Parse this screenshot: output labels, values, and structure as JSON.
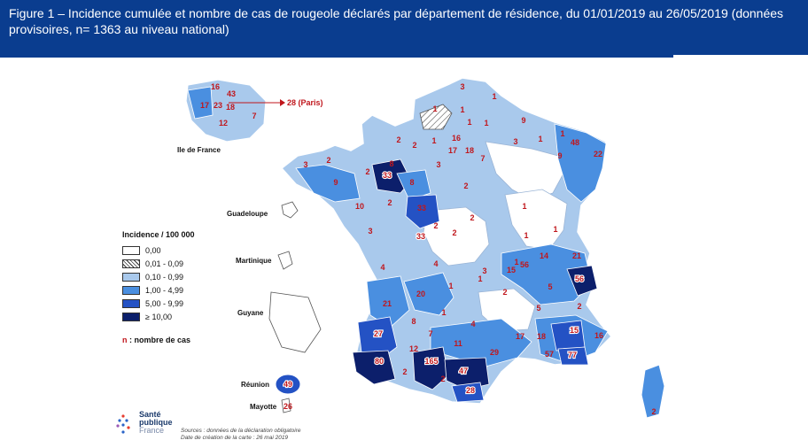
{
  "header": {
    "title": "Figure 1 – Incidence cumulée et nombre de cas de rougeole déclarés par département de résidence, du 01/01/2019 au 26/05/2019 (données provisoires, n= 1363 au niveau national)"
  },
  "map": {
    "paris_callout": "28 (Paris)",
    "regions": {
      "idf": "Ile de France",
      "guadeloupe": "Guadeloupe",
      "martinique": "Martinique",
      "guyane": "Guyane",
      "reunion": "Réunion",
      "mayotte": "Mayotte"
    },
    "colors": {
      "c0": "#ffffff",
      "c1": "#ffffff",
      "c2": "#a9c9ec",
      "c3": "#4a8fe0",
      "c4": "#2452c4",
      "c5": "#0c1f6b"
    },
    "departments": [
      {
        "value": "16",
        "cls": "c2"
      },
      {
        "value": "43",
        "cls": "c2"
      },
      {
        "value": "17",
        "cls": "c3"
      },
      {
        "value": "23",
        "cls": "c2"
      },
      {
        "value": "18",
        "cls": "c2"
      },
      {
        "value": "7",
        "cls": "c2"
      },
      {
        "value": "12",
        "cls": "c2"
      },
      {
        "value": "3",
        "cls": "c2"
      },
      {
        "value": "1",
        "cls": "c2"
      },
      {
        "value": "1",
        "cls": "c1"
      },
      {
        "value": "1",
        "cls": "c2"
      },
      {
        "value": "1",
        "cls": "c2"
      },
      {
        "value": "9",
        "cls": "c3"
      },
      {
        "value": "2",
        "cls": "c2"
      },
      {
        "value": "1",
        "cls": "c2"
      },
      {
        "value": "2",
        "cls": "c2"
      },
      {
        "value": "16",
        "cls": "c2"
      },
      {
        "value": "1",
        "cls": "c2"
      },
      {
        "value": "3",
        "cls": "c2"
      },
      {
        "value": "1",
        "cls": "c2"
      },
      {
        "value": "1",
        "cls": "c2"
      },
      {
        "value": "48",
        "cls": "c3"
      },
      {
        "value": "17",
        "cls": "c2"
      },
      {
        "value": "18",
        "cls": "c2"
      },
      {
        "value": "7",
        "cls": "c2"
      },
      {
        "value": "9",
        "cls": "c3"
      },
      {
        "value": "22",
        "cls": "c3"
      },
      {
        "value": "3",
        "cls": "c2"
      },
      {
        "value": "2",
        "cls": "c2"
      },
      {
        "value": "3",
        "cls": "c2"
      },
      {
        "value": "2",
        "cls": "c2"
      },
      {
        "value": "8",
        "cls": "c2"
      },
      {
        "value": "33",
        "cls": "c5"
      },
      {
        "value": "9",
        "cls": "c3"
      },
      {
        "value": "8",
        "cls": "c3"
      },
      {
        "value": "2",
        "cls": "c2"
      },
      {
        "value": "33",
        "cls": "c3"
      },
      {
        "value": "10",
        "cls": "c2"
      },
      {
        "value": "2",
        "cls": "c2"
      },
      {
        "value": "33",
        "cls": "c4"
      },
      {
        "value": "2",
        "cls": "c2"
      },
      {
        "value": "1",
        "cls": "c2"
      },
      {
        "value": "3",
        "cls": "c2"
      },
      {
        "value": "2",
        "cls": "c2"
      },
      {
        "value": "2",
        "cls": "c2"
      },
      {
        "value": "1",
        "cls": "c2"
      },
      {
        "value": "1",
        "cls": "c2"
      },
      {
        "value": "1",
        "cls": "c2"
      },
      {
        "value": "4",
        "cls": "c2"
      },
      {
        "value": "4",
        "cls": "c3"
      },
      {
        "value": "3",
        "cls": "c2"
      },
      {
        "value": "15",
        "cls": "c3"
      },
      {
        "value": "56",
        "cls": "c3"
      },
      {
        "value": "14",
        "cls": "c3"
      },
      {
        "value": "21",
        "cls": "c3"
      },
      {
        "value": "56",
        "cls": "c5"
      },
      {
        "value": "20",
        "cls": "c3"
      },
      {
        "value": "1",
        "cls": "c2"
      },
      {
        "value": "1",
        "cls": "c2"
      },
      {
        "value": "2",
        "cls": "c2"
      },
      {
        "value": "5",
        "cls": "c3"
      },
      {
        "value": "21",
        "cls": "c3"
      },
      {
        "value": "8",
        "cls": "c2"
      },
      {
        "value": "1",
        "cls": "c2"
      },
      {
        "value": "4",
        "cls": "c3"
      },
      {
        "value": "5",
        "cls": "c3"
      },
      {
        "value": "2",
        "cls": "c3"
      },
      {
        "value": "27",
        "cls": "c4"
      },
      {
        "value": "7",
        "cls": "c3"
      },
      {
        "value": "11",
        "cls": "c3"
      },
      {
        "value": "17",
        "cls": "c3"
      },
      {
        "value": "18",
        "cls": "c3"
      },
      {
        "value": "15",
        "cls": "c4"
      },
      {
        "value": "16",
        "cls": "c3"
      },
      {
        "value": "12",
        "cls": "c3"
      },
      {
        "value": "29",
        "cls": "c3"
      },
      {
        "value": "57",
        "cls": "c3"
      },
      {
        "value": "77",
        "cls": "c4"
      },
      {
        "value": "80",
        "cls": "c5"
      },
      {
        "value": "165",
        "cls": "c5"
      },
      {
        "value": "47",
        "cls": "c5"
      },
      {
        "value": "2",
        "cls": "c3"
      },
      {
        "value": "2",
        "cls": "c3"
      },
      {
        "value": "28",
        "cls": "c4"
      },
      {
        "value": "49",
        "cls": "c4"
      },
      {
        "value": "26",
        "cls": "c0"
      },
      {
        "value": "2",
        "cls": "c3"
      }
    ]
  },
  "legend": {
    "title": "Incidence / 100 000",
    "items": [
      {
        "label": "0,00",
        "color": "#ffffff",
        "hatched": false
      },
      {
        "label": "0,01 - 0,09",
        "color": "#ffffff",
        "hatched": true
      },
      {
        "label": "0,10 - 0,99",
        "color": "#a9c9ec",
        "hatched": false
      },
      {
        "label": "1,00 - 4,99",
        "color": "#4a8fe0",
        "hatched": false
      },
      {
        "label": "5,00 - 9,99",
        "color": "#2452c4",
        "hatched": false
      },
      {
        "label": "≥ 10,00",
        "color": "#0c1f6b",
        "hatched": false
      }
    ],
    "note_n": "n",
    "note_rest": " : nombre de cas"
  },
  "footer": {
    "logo_line1": "Santé",
    "logo_line2": "publique",
    "logo_line3": "France",
    "sources_line1": "Sources : données de la déclaration obligatoire",
    "sources_line2": "Date de création de la carte : 26 mai 2019"
  }
}
